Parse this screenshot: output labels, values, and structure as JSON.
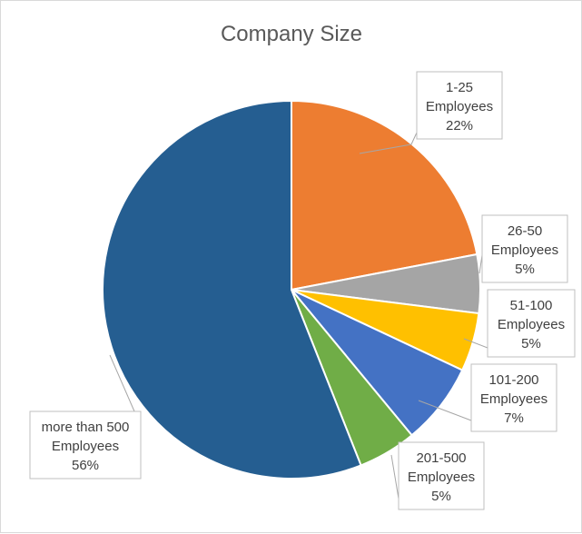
{
  "chart_data": {
    "type": "pie",
    "title": "Company Size",
    "slices": [
      {
        "lines": [
          "1-25",
          "Employees",
          "22%"
        ],
        "value": 22,
        "color": "#ED7D31"
      },
      {
        "lines": [
          "26-50",
          "Employees",
          "5%"
        ],
        "value": 5,
        "color": "#A5A5A5"
      },
      {
        "lines": [
          "51-100",
          "Employees",
          "5%"
        ],
        "value": 5,
        "color": "#FFC000"
      },
      {
        "lines": [
          "101-200",
          "Employees",
          "7%"
        ],
        "value": 7,
        "color": "#4472C4"
      },
      {
        "lines": [
          "201-500",
          "Employees",
          "5%"
        ],
        "value": 5,
        "color": "#70AD47"
      },
      {
        "lines": [
          "more than 500",
          "Employees",
          "56%"
        ],
        "value": 56,
        "color": "#255E91"
      }
    ]
  }
}
